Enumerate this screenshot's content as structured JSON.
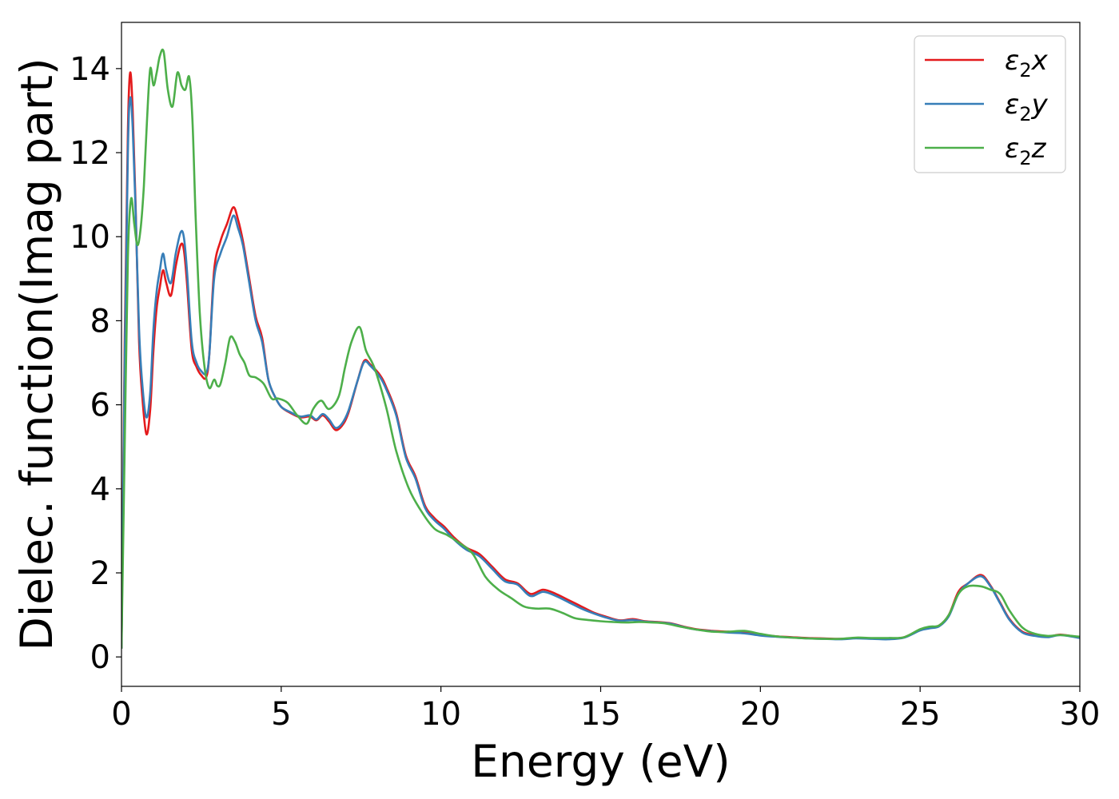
{
  "chart_data": {
    "type": "line",
    "title": "",
    "xlabel": "Energy (eV)",
    "ylabel": "Dielec. function(Imag part)",
    "xlim": [
      0,
      30
    ],
    "ylim": [
      -0.7,
      15.1
    ],
    "xticks": [
      0,
      5,
      10,
      15,
      20,
      25,
      30
    ],
    "yticks": [
      0,
      2,
      4,
      6,
      8,
      10,
      12,
      14
    ],
    "grid": false,
    "legend_position": "top-right",
    "series": [
      {
        "name": "ε₂x",
        "legend_base": "ε",
        "legend_sub": "2",
        "legend_var": "x",
        "color": "#e41a1c",
        "x": [
          0,
          0.1,
          0.2,
          0.27,
          0.35,
          0.45,
          0.55,
          0.65,
          0.78,
          0.9,
          1.0,
          1.1,
          1.2,
          1.3,
          1.4,
          1.55,
          1.7,
          1.85,
          1.95,
          2.05,
          2.2,
          2.35,
          2.5,
          2.65,
          2.75,
          2.9,
          3.1,
          3.3,
          3.5,
          3.65,
          3.8,
          4.0,
          4.2,
          4.4,
          4.6,
          4.8,
          5.0,
          5.3,
          5.6,
          5.9,
          6.1,
          6.3,
          6.5,
          6.7,
          6.9,
          7.1,
          7.4,
          7.6,
          7.8,
          8.1,
          8.3,
          8.6,
          8.9,
          9.2,
          9.5,
          9.8,
          10.1,
          10.4,
          10.8,
          11.2,
          11.6,
          12.0,
          12.4,
          12.8,
          13.2,
          13.6,
          14.0,
          14.4,
          14.8,
          15.2,
          15.6,
          16.0,
          16.4,
          16.8,
          17.2,
          17.6,
          18.0,
          18.5,
          19.0,
          19.5,
          20.0,
          20.5,
          21.0,
          21.5,
          22.0,
          22.5,
          23.0,
          23.5,
          24.0,
          24.5,
          25.0,
          25.3,
          25.6,
          25.9,
          26.2,
          26.5,
          26.9,
          27.2,
          27.5,
          27.8,
          28.2,
          28.6,
          29.0,
          29.4,
          30.0
        ],
        "y": [
          0.2,
          7.5,
          12.5,
          13.9,
          13.0,
          10.5,
          7.5,
          6.2,
          5.3,
          5.9,
          7.3,
          8.3,
          8.8,
          9.2,
          8.9,
          8.6,
          9.3,
          9.8,
          9.7,
          8.9,
          7.3,
          6.9,
          6.7,
          6.65,
          7.2,
          9.2,
          9.9,
          10.3,
          10.7,
          10.4,
          9.9,
          9.0,
          8.1,
          7.6,
          6.6,
          6.2,
          5.95,
          5.8,
          5.7,
          5.72,
          5.63,
          5.75,
          5.6,
          5.4,
          5.5,
          5.8,
          6.6,
          7.05,
          6.95,
          6.7,
          6.4,
          5.8,
          4.8,
          4.3,
          3.6,
          3.3,
          3.1,
          2.85,
          2.6,
          2.45,
          2.15,
          1.85,
          1.75,
          1.5,
          1.6,
          1.5,
          1.35,
          1.2,
          1.05,
          0.95,
          0.87,
          0.9,
          0.85,
          0.83,
          0.8,
          0.72,
          0.66,
          0.62,
          0.6,
          0.58,
          0.53,
          0.49,
          0.47,
          0.45,
          0.44,
          0.43,
          0.45,
          0.44,
          0.43,
          0.47,
          0.65,
          0.7,
          0.75,
          1.0,
          1.55,
          1.75,
          1.95,
          1.7,
          1.3,
          0.9,
          0.6,
          0.52,
          0.48,
          0.53,
          0.46
        ]
      },
      {
        "name": "ε₂y",
        "legend_base": "ε",
        "legend_sub": "2",
        "legend_var": "y",
        "color": "#377eb8",
        "x": [
          0,
          0.1,
          0.2,
          0.27,
          0.35,
          0.45,
          0.55,
          0.65,
          0.78,
          0.9,
          1.0,
          1.1,
          1.2,
          1.3,
          1.4,
          1.55,
          1.7,
          1.85,
          1.95,
          2.05,
          2.2,
          2.35,
          2.5,
          2.65,
          2.75,
          2.9,
          3.1,
          3.3,
          3.5,
          3.65,
          3.8,
          4.0,
          4.2,
          4.4,
          4.6,
          4.8,
          5.0,
          5.3,
          5.6,
          5.9,
          6.1,
          6.3,
          6.5,
          6.7,
          6.9,
          7.1,
          7.4,
          7.6,
          7.8,
          8.1,
          8.3,
          8.6,
          8.9,
          9.2,
          9.5,
          9.8,
          10.1,
          10.4,
          10.8,
          11.2,
          11.6,
          12.0,
          12.4,
          12.8,
          13.2,
          13.6,
          14.0,
          14.4,
          14.8,
          15.2,
          15.6,
          16.0,
          16.4,
          16.8,
          17.2,
          17.6,
          18.0,
          18.5,
          19.0,
          19.5,
          20.0,
          20.5,
          21.0,
          21.5,
          22.0,
          22.5,
          23.0,
          23.5,
          24.0,
          24.5,
          25.0,
          25.3,
          25.6,
          25.9,
          26.2,
          26.5,
          26.9,
          27.2,
          27.5,
          27.8,
          28.2,
          28.6,
          29.0,
          29.4,
          30.0
        ],
        "y": [
          0.2,
          7.0,
          12.0,
          13.3,
          12.6,
          10.4,
          7.8,
          6.5,
          5.7,
          6.3,
          7.8,
          8.7,
          9.2,
          9.6,
          9.2,
          8.9,
          9.6,
          10.1,
          10.0,
          9.2,
          7.5,
          7.0,
          6.8,
          6.75,
          7.2,
          9.0,
          9.6,
          10.0,
          10.5,
          10.2,
          9.8,
          8.9,
          8.0,
          7.5,
          6.6,
          6.2,
          5.95,
          5.82,
          5.72,
          5.75,
          5.65,
          5.78,
          5.65,
          5.45,
          5.55,
          5.85,
          6.6,
          7.02,
          6.92,
          6.65,
          6.35,
          5.75,
          4.75,
          4.25,
          3.55,
          3.25,
          3.05,
          2.8,
          2.55,
          2.4,
          2.1,
          1.8,
          1.72,
          1.45,
          1.55,
          1.45,
          1.3,
          1.15,
          1.03,
          0.93,
          0.86,
          0.88,
          0.84,
          0.82,
          0.79,
          0.71,
          0.65,
          0.61,
          0.58,
          0.56,
          0.51,
          0.48,
          0.46,
          0.44,
          0.43,
          0.42,
          0.44,
          0.43,
          0.42,
          0.46,
          0.63,
          0.68,
          0.73,
          0.97,
          1.5,
          1.75,
          1.92,
          1.68,
          1.28,
          0.88,
          0.58,
          0.5,
          0.47,
          0.52,
          0.45
        ]
      },
      {
        "name": "ε₂z",
        "legend_base": "ε",
        "legend_sub": "2",
        "legend_var": "z",
        "color": "#4daf4a",
        "x": [
          0,
          0.1,
          0.2,
          0.3,
          0.4,
          0.5,
          0.6,
          0.7,
          0.8,
          0.9,
          1.0,
          1.1,
          1.2,
          1.32,
          1.45,
          1.6,
          1.75,
          1.88,
          2.0,
          2.12,
          2.22,
          2.32,
          2.45,
          2.6,
          2.75,
          2.9,
          3.0,
          3.1,
          3.25,
          3.4,
          3.55,
          3.7,
          3.85,
          4.0,
          4.2,
          4.45,
          4.7,
          4.9,
          5.2,
          5.5,
          5.8,
          6.0,
          6.25,
          6.5,
          6.8,
          7.0,
          7.2,
          7.45,
          7.65,
          7.85,
          8.0,
          8.3,
          8.6,
          9.0,
          9.4,
          9.8,
          10.2,
          10.6,
          11.0,
          11.4,
          11.8,
          12.2,
          12.6,
          13.0,
          13.4,
          13.8,
          14.2,
          14.6,
          15.0,
          15.4,
          15.8,
          16.2,
          16.6,
          17.0,
          17.5,
          18.0,
          18.5,
          19.0,
          19.5,
          20.0,
          20.5,
          21.0,
          21.5,
          22.0,
          22.5,
          23.0,
          23.5,
          24.0,
          24.5,
          25.0,
          25.3,
          25.6,
          25.9,
          26.2,
          26.5,
          26.9,
          27.2,
          27.5,
          27.8,
          28.2,
          28.6,
          29.0,
          29.4,
          30.0
        ],
        "y": [
          0.2,
          5.0,
          9.5,
          10.9,
          10.3,
          9.8,
          10.2,
          11.2,
          12.8,
          14.0,
          13.6,
          13.9,
          14.3,
          14.4,
          13.5,
          13.1,
          13.9,
          13.6,
          13.5,
          13.8,
          12.8,
          10.5,
          8.2,
          6.9,
          6.4,
          6.6,
          6.45,
          6.5,
          7.0,
          7.6,
          7.5,
          7.2,
          7.0,
          6.7,
          6.65,
          6.5,
          6.15,
          6.15,
          6.05,
          5.75,
          5.55,
          5.9,
          6.1,
          5.9,
          6.2,
          6.9,
          7.5,
          7.85,
          7.3,
          7.0,
          6.7,
          5.9,
          4.9,
          4.0,
          3.45,
          3.05,
          2.9,
          2.7,
          2.45,
          1.9,
          1.6,
          1.4,
          1.2,
          1.15,
          1.15,
          1.05,
          0.92,
          0.88,
          0.85,
          0.83,
          0.82,
          0.83,
          0.82,
          0.8,
          0.72,
          0.65,
          0.6,
          0.6,
          0.62,
          0.55,
          0.49,
          0.46,
          0.44,
          0.43,
          0.43,
          0.46,
          0.45,
          0.45,
          0.47,
          0.66,
          0.72,
          0.75,
          1.0,
          1.5,
          1.68,
          1.68,
          1.6,
          1.5,
          1.1,
          0.7,
          0.55,
          0.5,
          0.52,
          0.48
        ]
      }
    ]
  }
}
